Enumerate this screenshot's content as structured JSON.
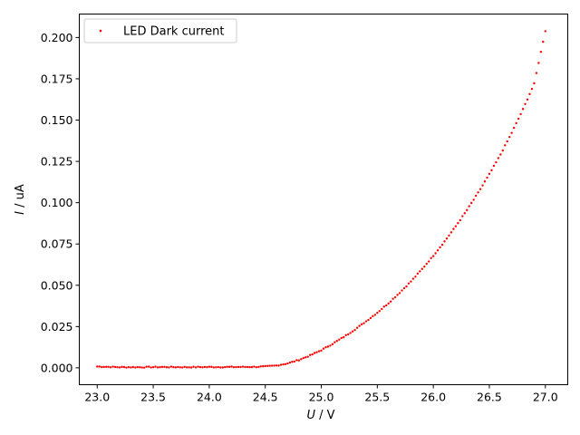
{
  "chart_data": {
    "type": "scatter",
    "title": "",
    "xlabel_var": "U",
    "xlabel_unit": " / V",
    "ylabel_var": "I",
    "ylabel_unit": " / uA",
    "xlim": [
      22.84,
      27.2
    ],
    "ylim": [
      -0.0102,
      0.2142
    ],
    "x_ticks": [
      23.0,
      23.5,
      24.0,
      24.5,
      25.0,
      25.5,
      26.0,
      26.5,
      27.0
    ],
    "x_tick_labels": [
      "23.0",
      "23.5",
      "24.0",
      "24.5",
      "25.0",
      "25.5",
      "26.0",
      "26.5",
      "27.0"
    ],
    "y_ticks": [
      0.0,
      0.025,
      0.05,
      0.075,
      0.1,
      0.125,
      0.15,
      0.175,
      0.2
    ],
    "y_tick_labels": [
      "0.000",
      "0.025",
      "0.050",
      "0.075",
      "0.100",
      "0.125",
      "0.150",
      "0.175",
      "0.200"
    ],
    "grid": false,
    "legend_position": "top-left",
    "series": [
      {
        "name": "LED Dark current",
        "color": "#ff0000",
        "x_start": 23.0,
        "x_end": 27.0,
        "x_step": 0.02,
        "points": [
          [
            23.0,
            0.0008
          ],
          [
            23.2,
            0.0004
          ],
          [
            23.4,
            0.0004
          ],
          [
            23.6,
            0.0005
          ],
          [
            23.8,
            0.0004
          ],
          [
            24.0,
            0.0005
          ],
          [
            24.2,
            0.0005
          ],
          [
            24.4,
            0.0006
          ],
          [
            24.5,
            0.0008
          ],
          [
            24.6,
            0.0014
          ],
          [
            24.7,
            0.0027
          ],
          [
            24.8,
            0.0048
          ],
          [
            24.9,
            0.0075
          ],
          [
            25.0,
            0.0107
          ],
          [
            25.1,
            0.0145
          ],
          [
            25.2,
            0.0187
          ],
          [
            25.3,
            0.0232
          ],
          [
            25.4,
            0.0282
          ],
          [
            25.5,
            0.0334
          ],
          [
            25.6,
            0.0392
          ],
          [
            25.7,
            0.0455
          ],
          [
            25.8,
            0.0523
          ],
          [
            25.9,
            0.0598
          ],
          [
            26.0,
            0.0679
          ],
          [
            26.1,
            0.0765
          ],
          [
            26.2,
            0.0857
          ],
          [
            26.3,
            0.0955
          ],
          [
            26.4,
            0.106
          ],
          [
            26.5,
            0.1172
          ],
          [
            26.6,
            0.1292
          ],
          [
            26.7,
            0.1423
          ],
          [
            26.8,
            0.1565
          ],
          [
            26.9,
            0.172
          ],
          [
            27.0,
            0.204
          ]
        ]
      }
    ]
  }
}
